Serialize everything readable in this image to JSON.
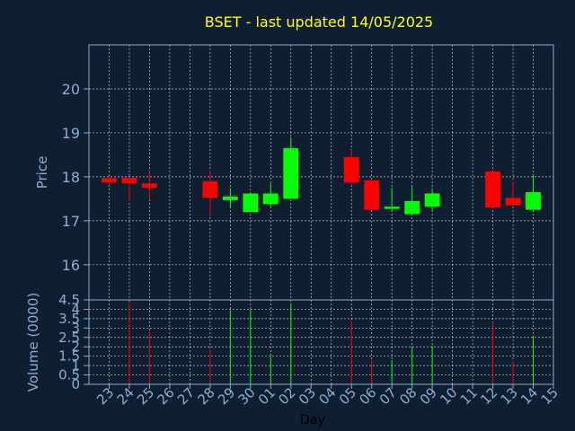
{
  "chart_data": {
    "type": "candlestick",
    "title": "BSET - last updated 14/05/2025",
    "xlabel": "Day",
    "ylabel_price": "Price",
    "ylabel_volume": "Volume (0000)",
    "x_ticks": [
      "23",
      "24",
      "25",
      "26",
      "27",
      "28",
      "29",
      "30",
      "01",
      "02",
      "03",
      "04",
      "05",
      "06",
      "07",
      "08",
      "09",
      "10",
      "11",
      "12",
      "13",
      "14",
      "15"
    ],
    "price_yticks": [
      "16",
      "17",
      "18",
      "19",
      "20"
    ],
    "price_ylim": [
      15.2,
      21.0
    ],
    "volume_yticks": [
      "0",
      "0.5",
      "1",
      "1.5",
      "2",
      "2.5",
      "3",
      "3.5",
      "4",
      "4.5"
    ],
    "volume_ylim": [
      0,
      4.5
    ],
    "grid": true,
    "colors": {
      "background": "#0f1e31",
      "up": "#00ff00",
      "down": "#ff0000",
      "grid": "#ffffff",
      "title": "#ffff00",
      "ticks": "#8aaed4"
    },
    "candles": [
      {
        "day": "23",
        "open": 17.97,
        "high": 18.0,
        "low": 17.85,
        "close": 17.87,
        "volume": 0
      },
      {
        "day": "24",
        "open": 17.98,
        "high": 17.98,
        "low": 17.45,
        "close": 17.85,
        "volume": 4.35
      },
      {
        "day": "25",
        "open": 17.85,
        "high": 18.12,
        "low": 17.5,
        "close": 17.75,
        "volume": 2.8
      },
      {
        "day": "28",
        "open": 17.9,
        "high": 18.15,
        "low": 17.1,
        "close": 17.52,
        "volume": 1.8
      },
      {
        "day": "29",
        "open": 17.47,
        "high": 17.72,
        "low": 17.3,
        "close": 17.55,
        "volume": 3.95
      },
      {
        "day": "30",
        "open": 17.2,
        "high": 17.62,
        "low": 17.2,
        "close": 17.62,
        "volume": 4.0
      },
      {
        "day": "01",
        "open": 17.38,
        "high": 17.85,
        "low": 17.32,
        "close": 17.62,
        "volume": 1.5
      },
      {
        "day": "02",
        "open": 17.5,
        "high": 18.9,
        "low": 17.5,
        "close": 18.65,
        "volume": 4.3
      },
      {
        "day": "05",
        "open": 18.45,
        "high": 18.65,
        "low": 17.85,
        "close": 17.87,
        "volume": 3.4
      },
      {
        "day": "06",
        "open": 17.92,
        "high": 17.92,
        "low": 17.25,
        "close": 17.25,
        "volume": 1.3
      },
      {
        "day": "07",
        "open": 17.27,
        "high": 17.75,
        "low": 17.2,
        "close": 17.32,
        "volume": 1.3
      },
      {
        "day": "08",
        "open": 17.15,
        "high": 17.78,
        "low": 17.15,
        "close": 17.45,
        "volume": 1.9
      },
      {
        "day": "09",
        "open": 17.32,
        "high": 17.72,
        "low": 17.22,
        "close": 17.62,
        "volume": 2.05
      },
      {
        "day": "12",
        "open": 18.12,
        "high": 18.12,
        "low": 17.3,
        "close": 17.3,
        "volume": 3.3
      },
      {
        "day": "13",
        "open": 17.52,
        "high": 17.9,
        "low": 17.35,
        "close": 17.35,
        "volume": 1.25
      },
      {
        "day": "14",
        "open": 17.25,
        "high": 18.05,
        "low": 17.25,
        "close": 17.65,
        "volume": 2.6
      }
    ]
  }
}
